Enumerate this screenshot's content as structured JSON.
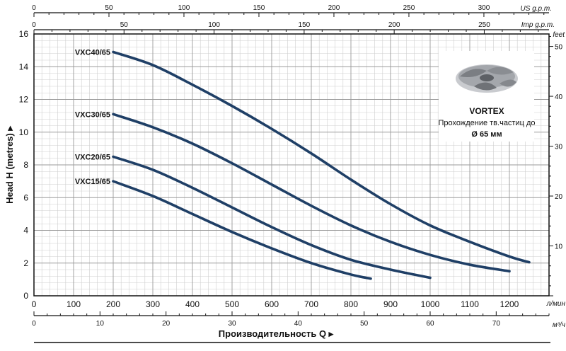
{
  "chart_data": {
    "type": "line",
    "x_unit_primary": "л/мин",
    "x_unit_m3h": "м³/ч",
    "x_unit_us": "US g.p.m.",
    "x_unit_imp": "Imp g.p.m.",
    "y_unit_right": "feet",
    "xlabel": "Производительность Q ▸",
    "ylabel": "Head H (metres) ▸",
    "xlim": [
      0,
      1300
    ],
    "ylim": [
      0,
      16
    ],
    "x_ticks": [
      0,
      100,
      200,
      300,
      400,
      500,
      600,
      700,
      800,
      900,
      1000,
      1100,
      1200
    ],
    "y_ticks": [
      0,
      2,
      4,
      6,
      8,
      10,
      12,
      14,
      16
    ],
    "y_ticks_feet": [
      10,
      20,
      30,
      40,
      50
    ],
    "m3h_ticks": [
      0,
      10,
      20,
      30,
      40,
      50,
      60,
      70
    ],
    "us_ticks": [
      0,
      50,
      100,
      150,
      200,
      250,
      300
    ],
    "imp_ticks": [
      0,
      50,
      100,
      150,
      200,
      250
    ],
    "grid": true,
    "series": [
      {
        "name": "VXC40/65",
        "x": [
          200,
          300,
          400,
          500,
          600,
          700,
          800,
          900,
          1000,
          1100,
          1200,
          1250
        ],
        "y": [
          14.9,
          14.1,
          12.9,
          11.6,
          10.2,
          8.7,
          7.1,
          5.6,
          4.3,
          3.3,
          2.4,
          2.05
        ]
      },
      {
        "name": "VXC30/65",
        "x": [
          200,
          300,
          400,
          500,
          600,
          700,
          800,
          900,
          1000,
          1100,
          1200
        ],
        "y": [
          11.1,
          10.3,
          9.3,
          8.1,
          6.8,
          5.5,
          4.3,
          3.3,
          2.5,
          1.9,
          1.5
        ]
      },
      {
        "name": "VXC20/65",
        "x": [
          200,
          300,
          400,
          500,
          600,
          700,
          800,
          900,
          1000
        ],
        "y": [
          8.5,
          7.7,
          6.6,
          5.4,
          4.2,
          3.1,
          2.2,
          1.6,
          1.1
        ]
      },
      {
        "name": "VXC15/65",
        "x": [
          200,
          300,
          400,
          500,
          600,
          700,
          800,
          850
        ],
        "y": [
          7.0,
          6.1,
          5.0,
          3.9,
          2.9,
          2.0,
          1.3,
          1.05
        ]
      }
    ],
    "series_color": "#1f3f66"
  },
  "inset": {
    "title": "VORTEX",
    "line1": "Прохождение тв.частиц до",
    "line2": "Ø 65 мм"
  },
  "colors": {
    "curve": "#1f3f66",
    "grid_major": "#9a9a9a",
    "grid_minor": "#cfcfcf",
    "impeller": "#8d8f93"
  }
}
